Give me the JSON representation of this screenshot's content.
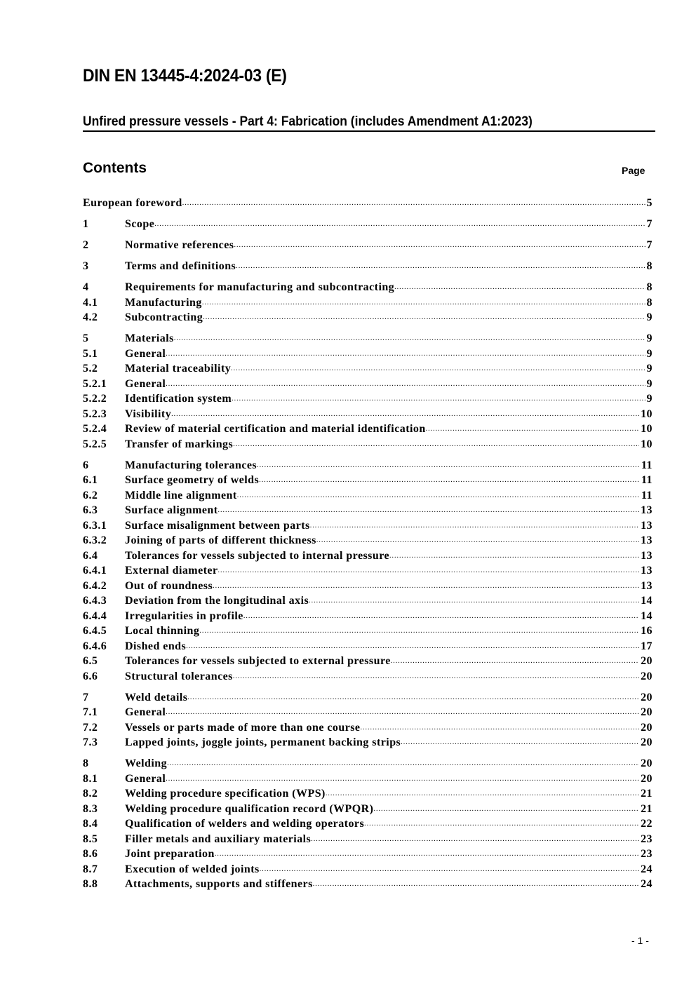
{
  "header": {
    "title": "DIN EN 13445-4:2024-03 (E)",
    "subtitle": "Unfired pressure vessels - Part 4: Fabrication (includes Amendment A1:2023)"
  },
  "contents_heading": "Contents",
  "page_heading": "Page",
  "toc": [
    [
      {
        "num": "",
        "title": "European foreword",
        "page": "5"
      }
    ],
    [
      {
        "num": "1",
        "title": "Scope",
        "page": "7"
      }
    ],
    [
      {
        "num": "2",
        "title": "Normative references",
        "page": "7"
      }
    ],
    [
      {
        "num": "3",
        "title": "Terms and definitions",
        "page": "8"
      }
    ],
    [
      {
        "num": "4",
        "title": "Requirements for manufacturing and subcontracting",
        "page": "8"
      },
      {
        "num": "4.1",
        "title": "Manufacturing",
        "page": "8"
      },
      {
        "num": "4.2",
        "title": "Subcontracting",
        "page": "9"
      }
    ],
    [
      {
        "num": "5",
        "title": "Materials",
        "page": "9"
      },
      {
        "num": "5.1",
        "title": "General",
        "page": "9"
      },
      {
        "num": "5.2",
        "title": "Material traceability",
        "page": "9"
      },
      {
        "num": "5.2.1",
        "title": "General",
        "page": "9"
      },
      {
        "num": "5.2.2",
        "title": "Identification system",
        "page": "9"
      },
      {
        "num": "5.2.3",
        "title": "Visibility",
        "page": "10"
      },
      {
        "num": "5.2.4",
        "title": "Review of material certification and material identification",
        "page": "10"
      },
      {
        "num": "5.2.5",
        "title": "Transfer of markings",
        "page": "10"
      }
    ],
    [
      {
        "num": "6",
        "title": "Manufacturing tolerances",
        "page": "11"
      },
      {
        "num": "6.1",
        "title": "Surface geometry of welds",
        "page": "11"
      },
      {
        "num": "6.2",
        "title": "Middle line alignment",
        "page": "11"
      },
      {
        "num": "6.3",
        "title": "Surface alignment",
        "page": "13"
      },
      {
        "num": "6.3.1",
        "title": "Surface misalignment between parts",
        "page": "13"
      },
      {
        "num": "6.3.2",
        "title": "Joining of parts of different thickness",
        "page": "13"
      },
      {
        "num": "6.4",
        "title": "Tolerances for vessels subjected to internal pressure",
        "page": "13"
      },
      {
        "num": "6.4.1",
        "title": "External diameter",
        "page": "13"
      },
      {
        "num": "6.4.2",
        "title": "Out of roundness",
        "page": "13"
      },
      {
        "num": "6.4.3",
        "title": "Deviation from the longitudinal axis",
        "page": "14"
      },
      {
        "num": "6.4.4",
        "title": "Irregularities in profile",
        "page": "14"
      },
      {
        "num": "6.4.5",
        "title": "Local thinning",
        "page": "16"
      },
      {
        "num": "6.4.6",
        "title": "Dished ends",
        "page": "17"
      },
      {
        "num": "6.5",
        "title": "Tolerances for vessels subjected to external pressure",
        "page": "20"
      },
      {
        "num": "6.6",
        "title": "Structural tolerances",
        "page": "20"
      }
    ],
    [
      {
        "num": "7",
        "title": "Weld details",
        "page": "20"
      },
      {
        "num": "7.1",
        "title": "General",
        "page": "20"
      },
      {
        "num": "7.2",
        "title": "Vessels or parts made of more than one course",
        "page": "20"
      },
      {
        "num": "7.3",
        "title": "Lapped joints, joggle joints, permanent backing strips",
        "page": "20"
      }
    ],
    [
      {
        "num": "8",
        "title": "Welding",
        "page": "20"
      },
      {
        "num": "8.1",
        "title": "General",
        "page": "20"
      },
      {
        "num": "8.2",
        "title": "Welding procedure specification (WPS)",
        "page": "21"
      },
      {
        "num": "8.3",
        "title": "Welding procedure qualification record (WPQR)",
        "page": "21"
      },
      {
        "num": "8.4",
        "title": "Qualification of welders and welding operators",
        "page": "22"
      },
      {
        "num": "8.5",
        "title": "Filler metals and auxiliary materials",
        "page": "23"
      },
      {
        "num": "8.6",
        "title": "Joint preparation",
        "page": "23"
      },
      {
        "num": "8.7",
        "title": "Execution of welded joints",
        "page": "24"
      },
      {
        "num": "8.8",
        "title": "Attachments, supports and stiffeners",
        "page": "24"
      }
    ]
  ],
  "footer": {
    "page_number": "- 1 -"
  }
}
